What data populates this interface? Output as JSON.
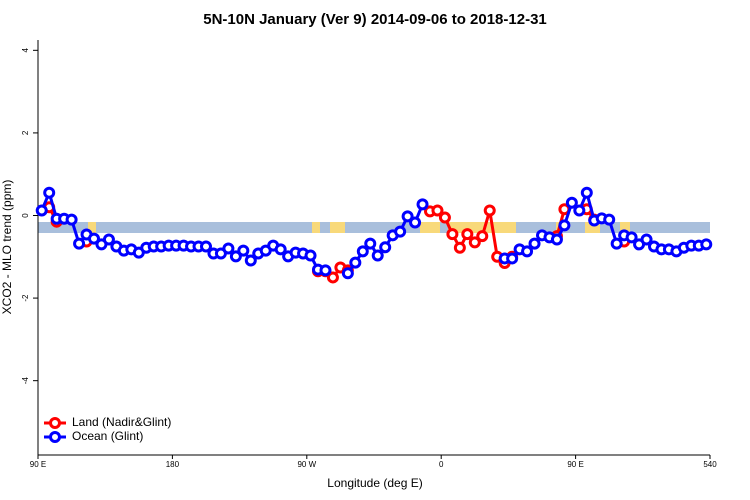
{
  "chart_data": {
    "type": "line",
    "title": "5N-10N January (Ver 9)   2014-09-06 to 2018-12-31",
    "x_label": "Longitude (deg E)",
    "y_label": "XCO2 - MLO trend (ppm)",
    "xlim": [
      90,
      540
    ],
    "xticks": [
      {
        "value": 90,
        "label": "90 E"
      },
      180,
      {
        "value": 270,
        "label": "90 W"
      },
      {
        "value": 360,
        "label": "0"
      },
      {
        "value": 450,
        "label": "90 E"
      },
      540
    ],
    "ylim": [
      -5.8,
      4.25
    ],
    "yticks": [
      -4,
      -2,
      0,
      2,
      4
    ],
    "legend": "bottomleft",
    "x": [
      92.5,
      97.5,
      102.5,
      107.5,
      112.5,
      117.5,
      122.5,
      127.5,
      132.5,
      137.5,
      142.5,
      147.5,
      152.5,
      157.5,
      162.5,
      167.5,
      172.5,
      177.5,
      182.5,
      187.5,
      192.5,
      197.5,
      202.5,
      207.5,
      212.5,
      217.5,
      222.5,
      227.5,
      232.5,
      237.5,
      242.5,
      247.5,
      252.5,
      257.5,
      262.5,
      267.5,
      272.5,
      277.5,
      282.5,
      287.5,
      292.5,
      297.5,
      302.5,
      307.5,
      312.5,
      317.5,
      322.5,
      327.5,
      332.5,
      337.5,
      342.5,
      347.5,
      352.5,
      357.5,
      362.5,
      367.5,
      372.5,
      377.5,
      382.5,
      387.5,
      392.5,
      397.5,
      402.5,
      407.5,
      412.5,
      417.5,
      422.5,
      427.5,
      432.5,
      437.5,
      442.5,
      447.5,
      452.5,
      457.5,
      462.5,
      467.5,
      472.5,
      477.5,
      482.5,
      487.5,
      492.5,
      497.5,
      502.5,
      507.5,
      512.5,
      517.5,
      522.5,
      527.5,
      532.5,
      537.5
    ],
    "series": [
      {
        "name": "Land (Nadir&Glint)",
        "color": "#ff0000",
        "values": [
          null,
          0.2,
          -0.15,
          null,
          null,
          null,
          -0.63,
          null,
          null,
          null,
          null,
          null,
          null,
          null,
          null,
          null,
          null,
          null,
          null,
          null,
          null,
          null,
          null,
          null,
          null,
          null,
          null,
          null,
          null,
          null,
          null,
          null,
          null,
          null,
          null,
          null,
          null,
          -1.35,
          -1.35,
          -1.5,
          -1.26,
          -1.33,
          null,
          null,
          null,
          null,
          null,
          null,
          null,
          null,
          null,
          null,
          0.1,
          0.12,
          -0.05,
          -0.45,
          -0.78,
          -0.45,
          -0.65,
          -0.5,
          0.12,
          -1.0,
          -1.15,
          -1.0,
          null,
          null,
          null,
          null,
          null,
          -0.5,
          0.15,
          null,
          null,
          0.15,
          -0.1,
          null,
          null,
          null,
          -0.63,
          null,
          null,
          null,
          null,
          null,
          null,
          null,
          null,
          null,
          null,
          null
        ]
      },
      {
        "name": "Ocean (Glint)",
        "color": "#0000ff",
        "values": [
          0.12,
          0.55,
          -0.08,
          -0.08,
          -0.1,
          -0.68,
          -0.46,
          -0.56,
          -0.7,
          -0.58,
          -0.75,
          -0.85,
          -0.82,
          -0.9,
          -0.78,
          -0.75,
          -0.75,
          -0.73,
          -0.73,
          -0.73,
          -0.75,
          -0.75,
          -0.75,
          -0.92,
          -0.92,
          -0.8,
          -0.99,
          -0.85,
          -1.09,
          -0.92,
          -0.85,
          -0.73,
          -0.82,
          -0.99,
          -0.9,
          -0.92,
          -0.97,
          -1.31,
          -1.33,
          null,
          null,
          -1.4,
          -1.14,
          -0.87,
          -0.68,
          -0.97,
          -0.77,
          -0.48,
          -0.39,
          -0.02,
          -0.17,
          0.27,
          null,
          null,
          null,
          null,
          null,
          null,
          null,
          null,
          null,
          null,
          -1.04,
          -1.04,
          -0.82,
          -0.87,
          -0.68,
          -0.48,
          -0.53,
          -0.58,
          -0.24,
          0.31,
          0.12,
          0.55,
          -0.12,
          -0.07,
          -0.1,
          -0.68,
          -0.48,
          -0.53,
          -0.7,
          -0.58,
          -0.75,
          -0.82,
          -0.82,
          -0.87,
          -0.78,
          -0.73,
          -0.73,
          -0.7
        ]
      }
    ]
  }
}
